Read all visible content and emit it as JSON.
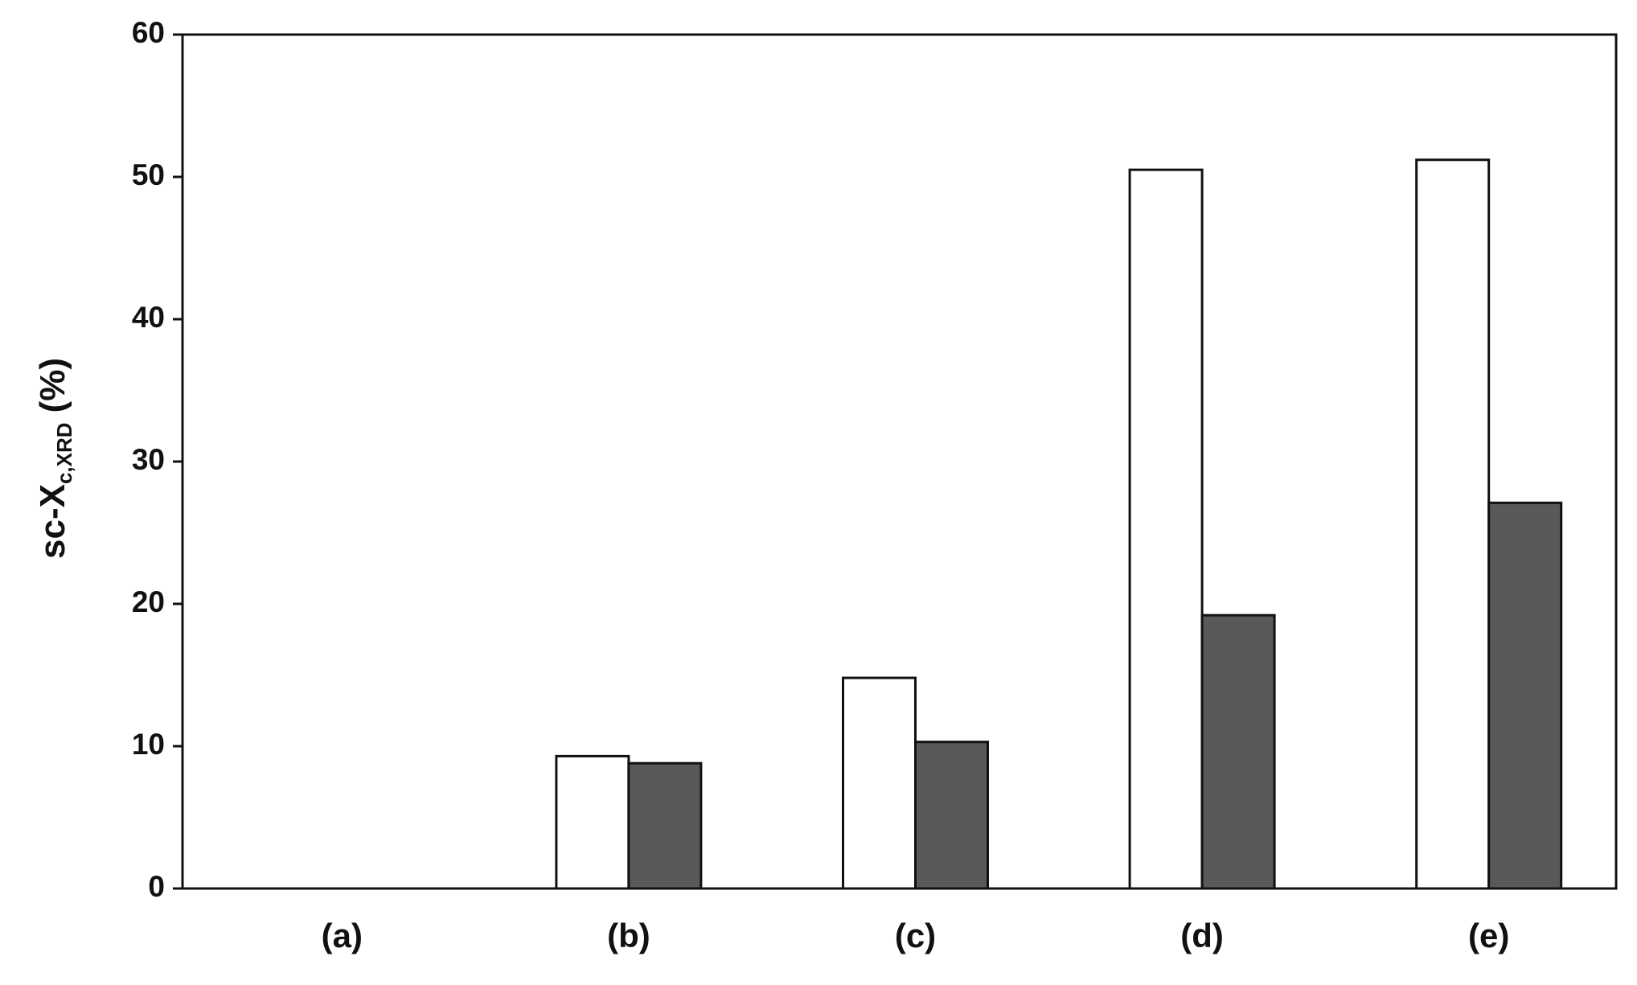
{
  "chart_data": {
    "type": "bar",
    "ylabel": {
      "main": "sc-X",
      "sub": "c,XRD",
      "unit": "(%)"
    },
    "categories": [
      "(a)",
      "(b)",
      "(c)",
      "(d)",
      "(e)"
    ],
    "series": [
      {
        "color": "#ffffff",
        "values": [
          0,
          9.3,
          14.8,
          50.5,
          51.2
        ]
      },
      {
        "color": "#595959",
        "values": [
          0,
          8.8,
          10.3,
          19.2,
          27.1
        ]
      }
    ],
    "ylim": [
      0,
      60
    ],
    "yticks": [
      0,
      10,
      20,
      30,
      40,
      50,
      60
    ],
    "grid": false
  }
}
